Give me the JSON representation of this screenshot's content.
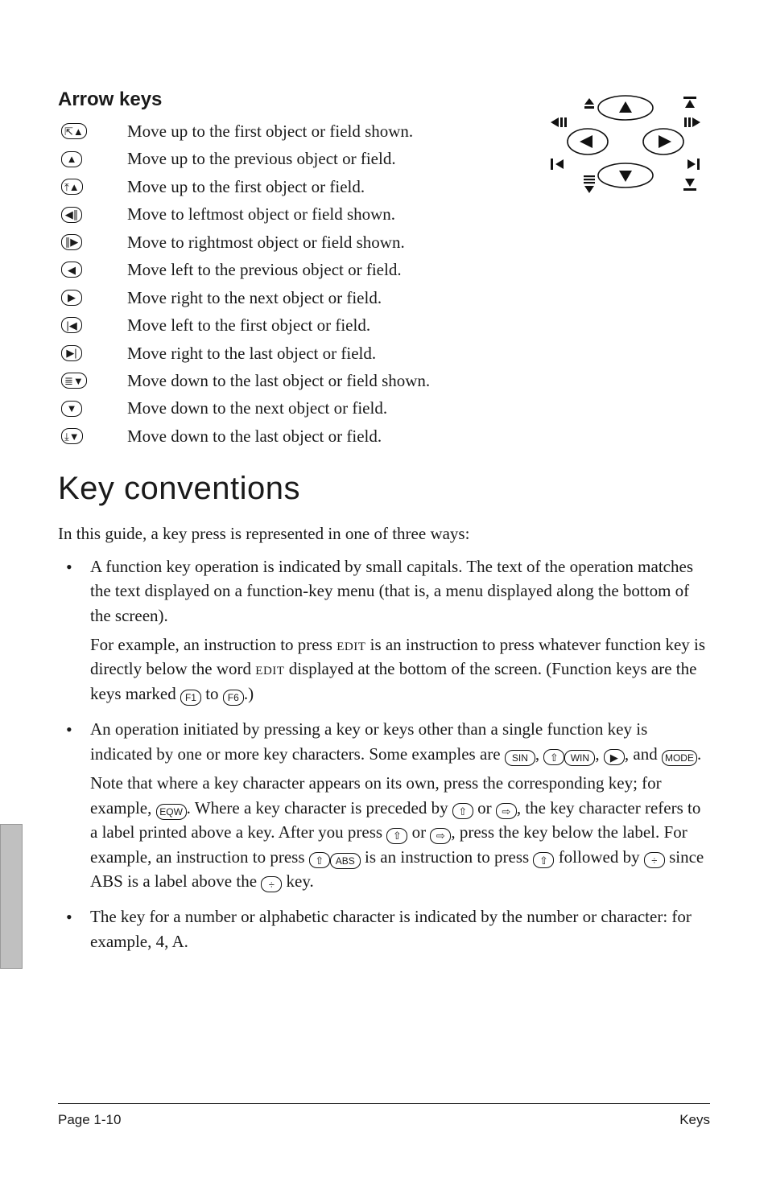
{
  "section_title": "Arrow keys",
  "arrow_keys": [
    {
      "glyph": "⇱▲",
      "desc": "Move up to the first object or field shown."
    },
    {
      "glyph": "▲",
      "desc": "Move up to the previous object or field."
    },
    {
      "glyph": "⤒▲",
      "desc": "Move up to the first object or field."
    },
    {
      "glyph": "◀∥",
      "desc": "Move to leftmost object or field shown."
    },
    {
      "glyph": "∥▶",
      "desc": "Move to rightmost object or field shown."
    },
    {
      "glyph": "◀",
      "desc": "Move left to the previous object or field."
    },
    {
      "glyph": "▶",
      "desc": "Move right to the next object or field."
    },
    {
      "glyph": "|◀",
      "desc": "Move left to the first object or field."
    },
    {
      "glyph": "▶|",
      "desc": "Move right to the last object or field."
    },
    {
      "glyph": "≣▼",
      "desc": "Move down to the last object or field shown."
    },
    {
      "glyph": "▼",
      "desc": "Move down to the next object or field."
    },
    {
      "glyph": "⤓▼",
      "desc": "Move down to the last object or field."
    }
  ],
  "heading": "Key conventions",
  "intro": "In this guide, a key press is represented in one of three ways:",
  "bullets": {
    "b1_p1a": "A function key operation is indicated by small capitals. The text of the operation matches the text displayed on a function-key menu (that is, a menu displayed along the bottom of the screen).",
    "b1_p2a": "For example, an instruction to press ",
    "b1_edit1": "edit",
    "b1_p2b": " is an instruction to press whatever function key is directly below the word ",
    "b1_edit2": "edit",
    "b1_p2c": " displayed at the bottom of the screen. (Function keys are the keys marked ",
    "b1_f1": "F1",
    "b1_p2d": " to ",
    "b1_f6": "F6",
    "b1_p2e": ".)",
    "b2_p1a": "An operation initiated by pressing a key or keys other than a single function key is indicated by one or more key characters. Some examples are ",
    "b2_sin": "SIN",
    "b2_c1": ", ",
    "b2_ls1": "⇧",
    "b2_win": "WIN",
    "b2_c2": ", ",
    "b2_right": "▶",
    "b2_c3": ", and ",
    "b2_mode": "MODE",
    "b2_c4": ".",
    "b2_p2a": "Note that where a key character appears on its own, press the corresponding key; for example, ",
    "b2_eqw": "EQW",
    "b2_p2b": ". Where a key character is preceded by ",
    "b2_ls2": "⇧",
    "b2_or1": " or ",
    "b2_rs1": "⇨",
    "b2_p2c": ", the key character refers to a label printed above a key. After you press ",
    "b2_ls3": "⇧",
    "b2_or2": " or ",
    "b2_rs2": "⇨",
    "b2_p2d": ", press the key below the label. For example, an instruction to press ",
    "b2_ls4": "⇧",
    "b2_abs": "ABS",
    "b2_p2e": " is an instruction to press ",
    "b2_ls5": "⇧",
    "b2_p2f": " followed by ",
    "b2_div1": "÷",
    "b2_p2g": " since ABS is a label above the ",
    "b2_div2": "÷",
    "b2_p2h": " key.",
    "b3": "The key for a number or alphabetic character is indicated by the number or character: for example, 4, A."
  },
  "footer": {
    "left": "Page 1-10",
    "right": "Keys"
  },
  "colors": {
    "text": "#1a1a1a",
    "key_border": "#111111",
    "rule": "#222222",
    "sidetab_bg": "#c0c0c0"
  }
}
